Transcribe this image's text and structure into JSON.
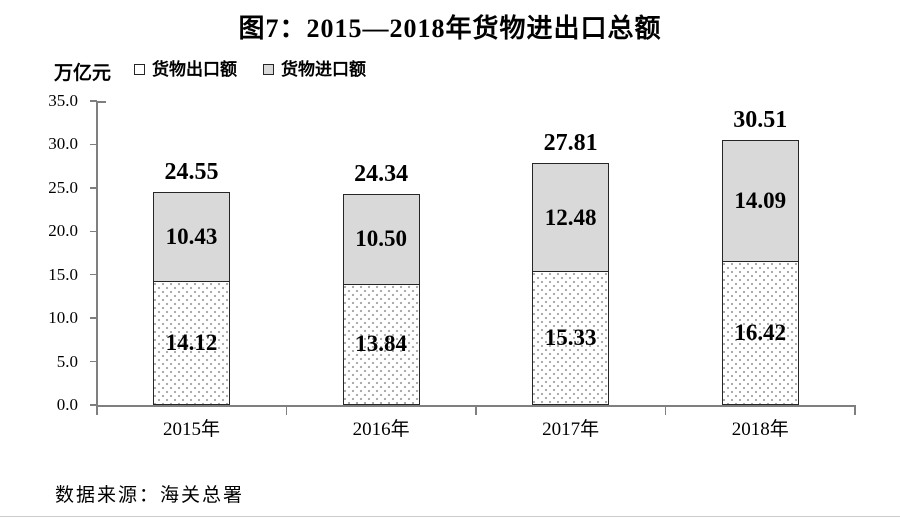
{
  "title": "图7：2015—2018年货物进出口总额",
  "source": "数据来源：海关总署",
  "colors": {
    "import_fill": "#d9d9d9",
    "export_fill": "#ffffff",
    "export_dot": "#a8a8a8",
    "bar_border": "#262626",
    "axis": "#7f7f7f",
    "text": "#000000"
  },
  "chart_data": {
    "type": "bar",
    "stacked": true,
    "title": "图7：2015—2018年货物进出口总额",
    "ylabel": "万亿元",
    "xlabel": "",
    "categories": [
      "2015年",
      "2016年",
      "2017年",
      "2018年"
    ],
    "series": [
      {
        "name": "货物出口额",
        "values": [
          14.12,
          13.84,
          15.33,
          16.42
        ],
        "style": "dotted-white",
        "position": "bottom"
      },
      {
        "name": "货物进口额",
        "values": [
          10.43,
          10.5,
          12.48,
          14.09
        ],
        "style": "gray",
        "position": "top"
      }
    ],
    "totals": [
      24.55,
      24.34,
      27.81,
      30.51
    ],
    "ylim": [
      0,
      35
    ],
    "ytick_step": 5,
    "yticks": [
      "0.0",
      "5.0",
      "10.0",
      "15.0",
      "20.0",
      "25.0",
      "30.0",
      "35.0"
    ],
    "legend_position": "top-left",
    "grid": false,
    "value_labels": "inside-segments-and-total-above"
  }
}
